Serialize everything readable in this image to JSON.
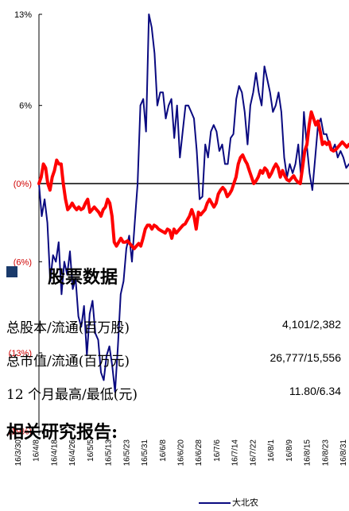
{
  "chart_data": {
    "type": "line",
    "y_ticks": [
      "13%",
      "6%",
      "(0%)",
      "(6%)",
      "(13%)",
      "(19%)"
    ],
    "y_values": [
      13,
      6,
      0,
      -6,
      -13,
      -19
    ],
    "ylim": [
      -19,
      13
    ],
    "x_ticks": [
      "16/3/30",
      "16/4/8",
      "16/4/18",
      "16/4/26",
      "16/5/5",
      "16/5/13",
      "16/5/23",
      "16/5/31",
      "16/6/8",
      "16/6/20",
      "16/6/28",
      "16/7/6",
      "16/7/14",
      "16/7/22",
      "16/8/1",
      "16/8/9",
      "16/8/15",
      "16/8/23",
      "16/8/31"
    ],
    "series": [
      {
        "name": "大北农",
        "color": "#0a0a80",
        "values": [
          0,
          -2.5,
          -1.2,
          -3,
          -7.5,
          -5.5,
          -6,
          -4.5,
          -8.5,
          -6,
          -7,
          -5.2,
          -8.1,
          -7.3,
          -10.2,
          -11,
          -9.4,
          -13.2,
          -10,
          -9,
          -11.5,
          -12,
          -14.5,
          -15.1,
          -13.2,
          -12.5,
          -14,
          -16,
          -12.5,
          -8.5,
          -7.5,
          -5,
          -4,
          -6,
          -3,
          0,
          6,
          6.5,
          4,
          13,
          12,
          10,
          6,
          7,
          7,
          5,
          6,
          6.5,
          3.5,
          6,
          2,
          4,
          6,
          6,
          5.5,
          5,
          2.5,
          -1.2,
          -1,
          3,
          2,
          4,
          4.5,
          4,
          2.5,
          3,
          1.5,
          1.5,
          3.5,
          3.8,
          6.5,
          7.5,
          7,
          5.5,
          3,
          6,
          7,
          8.5,
          7,
          6,
          9,
          8,
          7,
          5.5,
          6,
          7,
          5.5,
          2,
          0.5,
          1.5,
          0.8,
          1.5,
          3,
          0.5,
          5.5,
          3,
          0.8,
          -0.5,
          2,
          4.5,
          5,
          3.8,
          3.8,
          3,
          2.5,
          3,
          2,
          2.5,
          2,
          1.2,
          1.5
        ]
      },
      {
        "name": "",
        "color": "#ff0000",
        "values": [
          0,
          0.5,
          1.5,
          1.2,
          0,
          -0.5,
          0.5,
          1,
          1.8,
          1.5,
          1.5,
          0,
          -1.2,
          -2,
          -1.8,
          -1.5,
          -1.8,
          -2,
          -1.8,
          -2,
          -1.9,
          -1.5,
          -1.2,
          -2.2,
          -2,
          -1.8,
          -2,
          -2.2,
          -2.5,
          -2,
          -1.8,
          -1.2,
          -1.5,
          -2.5,
          -4.5,
          -4.8,
          -4.5,
          -4.2,
          -4.5,
          -4.5,
          -4.4,
          -4.6,
          -4.8,
          -5,
          -4.8,
          -4.6,
          -4.8,
          -4.2,
          -3.5,
          -3.2,
          -3.2,
          -3.5,
          -3.2,
          -3.3,
          -3.5,
          -3.6,
          -3.7,
          -3.8,
          -3.5,
          -3.6,
          -4.2,
          -3.5,
          -3.8,
          -3.6,
          -3.4,
          -3.2,
          -3.1,
          -2.8,
          -2.5,
          -2,
          -2.5,
          -3.5,
          -2.2,
          -2.4,
          -2.2,
          -2,
          -1.5,
          -1.2,
          -1.5,
          -1.8,
          -1.5,
          -0.8,
          -0.5,
          -0.3,
          -0.5,
          -1,
          -0.8,
          -0.5,
          0,
          0.5,
          1.5,
          2,
          2.2,
          1.8,
          1.5,
          1,
          0.5,
          0,
          0.2,
          0.5,
          1,
          0.8,
          1.2,
          1,
          0.5,
          0.8,
          1.2,
          1.5,
          1.2,
          0.5,
          1,
          0.6,
          0.3,
          0.2,
          0.4,
          0.6,
          0.3,
          0.1,
          0,
          1.2,
          2.5,
          3,
          4.5,
          5.5,
          5,
          4.5,
          4.8,
          4,
          3,
          3.2,
          3,
          3.2,
          2.6,
          2.5,
          2.6,
          2.8,
          3,
          3.2,
          3,
          2.8,
          3
        ]
      }
    ]
  },
  "overlay": {
    "section_title": "股票数据",
    "rows": [
      {
        "label": "总股本/流通(百万股)",
        "value": "4,101/2,382"
      },
      {
        "label": "总市值/流通(百万元)",
        "value": "26,777/15,556"
      },
      {
        "label": "12 个月最高/最低(元)",
        "value": "11.80/6.34"
      }
    ],
    "reports_title": "相关研究报告:"
  },
  "legend": {
    "label": "大北农"
  }
}
